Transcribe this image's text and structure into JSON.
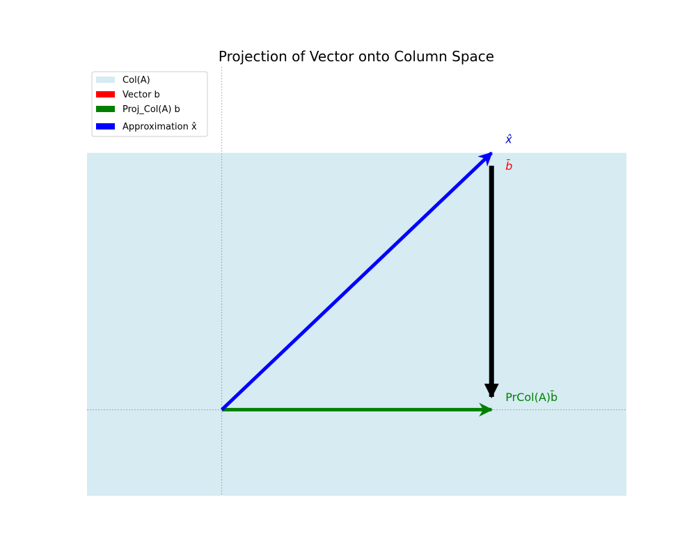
{
  "title": "Projection of Vector onto Column Space",
  "colors": {
    "col_space": "#add8e6",
    "vector_b_legend": "#ff0000",
    "proj": "#008000",
    "approx": "#0000ff",
    "b_arrow": "#000000",
    "b_label": "#ff0000",
    "x_label": "#0000cc",
    "proj_label": "#008000",
    "axis_line": "#808080"
  },
  "legend": {
    "placement": "top-left",
    "items": [
      {
        "label": "Col(A)",
        "color_key": "col_space"
      },
      {
        "label": "Vector b",
        "color_key": "vector_b_legend"
      },
      {
        "label": "Proj_Col(A) b",
        "color_key": "proj"
      },
      {
        "label": "Approximation x̂",
        "color_key": "approx"
      }
    ]
  },
  "vectors": {
    "approximation": {
      "from": [
        0,
        0
      ],
      "to": [
        2,
        2
      ]
    },
    "projection": {
      "from": [
        0,
        0
      ],
      "to": [
        2,
        0
      ]
    },
    "b": {
      "from": [
        2,
        1.9
      ],
      "to": [
        2,
        0.1
      ]
    }
  },
  "labels": {
    "x_hat": "x̂",
    "b_bar": "b̄",
    "proj": "PrCol(A)b̄"
  },
  "axes": {
    "xlim": [
      -1,
      3
    ],
    "ylim": [
      -0.67,
      2.67
    ],
    "col_space_box": {
      "x": [
        -1,
        3
      ],
      "y": [
        -0.67,
        2
      ]
    },
    "guide_lines": {
      "x0": 0,
      "y0": 0
    }
  }
}
